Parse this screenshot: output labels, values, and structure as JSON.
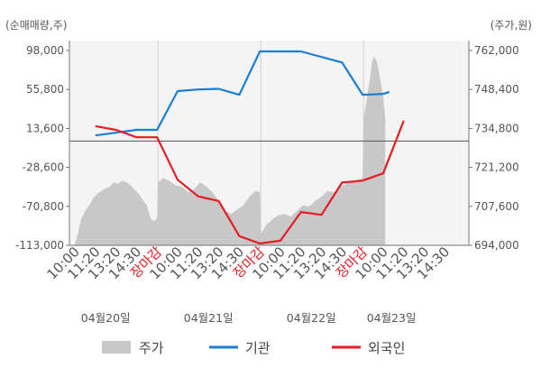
{
  "chart_data": {
    "type": "line",
    "left_axis_title": "(순매매량,주)",
    "right_axis_title": "(주가,원)",
    "left_ticks": [
      "98,000",
      "55,800",
      "13,600",
      "-28,600",
      "-70,800",
      "-113,000"
    ],
    "right_ticks": [
      "762,000",
      "748,400",
      "734,800",
      "721,200",
      "707,600",
      "694,000"
    ],
    "left_ylim": [
      -113000,
      98000
    ],
    "right_ylim": [
      694000,
      762000
    ],
    "x_tick_labels": [
      {
        "label": "10:00",
        "slot": 0,
        "market_close": false
      },
      {
        "label": "11:20",
        "slot": 1,
        "market_close": false
      },
      {
        "label": "13:20",
        "slot": 2,
        "market_close": false
      },
      {
        "label": "14:30",
        "slot": 3,
        "market_close": false
      },
      {
        "label": "장마감",
        "slot": 4,
        "market_close": true
      },
      {
        "label": "10:00",
        "slot": 5,
        "market_close": false
      },
      {
        "label": "11:20",
        "slot": 6,
        "market_close": false
      },
      {
        "label": "13:20",
        "slot": 7,
        "market_close": false
      },
      {
        "label": "14:30",
        "slot": 8,
        "market_close": false
      },
      {
        "label": "장마감",
        "slot": 9,
        "market_close": true
      },
      {
        "label": "10:00",
        "slot": 10,
        "market_close": false
      },
      {
        "label": "11:20",
        "slot": 11,
        "market_close": false
      },
      {
        "label": "13:20",
        "slot": 12,
        "market_close": false
      },
      {
        "label": "14:30",
        "slot": 13,
        "market_close": false
      },
      {
        "label": "장마감",
        "slot": 14,
        "market_close": true
      },
      {
        "label": "10:00",
        "slot": 15,
        "market_close": false
      },
      {
        "label": "11:20",
        "slot": 16,
        "market_close": false
      },
      {
        "label": "13:20",
        "slot": 17,
        "market_close": false
      },
      {
        "label": "14:30",
        "slot": 18,
        "market_close": false
      }
    ],
    "date_labels": [
      {
        "label": "04월20일",
        "slot": 1.5
      },
      {
        "label": "04월21일",
        "slot": 6.5
      },
      {
        "label": "04월22일",
        "slot": 11.5
      },
      {
        "label": "04월23일",
        "slot": 15.4
      }
    ],
    "zero_line": 0,
    "series": [
      {
        "name": "주가",
        "kind": "area",
        "axis": "right",
        "color": "#c8c8c8",
        "points": [
          [
            0,
            694500
          ],
          [
            0.15,
            698000
          ],
          [
            0.3,
            703000
          ],
          [
            0.5,
            706000
          ],
          [
            0.7,
            708000
          ],
          [
            0.9,
            710500
          ],
          [
            1.1,
            712000
          ],
          [
            1.3,
            713000
          ],
          [
            1.5,
            714000
          ],
          [
            1.7,
            714500
          ],
          [
            1.9,
            716000
          ],
          [
            2.1,
            715500
          ],
          [
            2.3,
            716500
          ],
          [
            2.5,
            716000
          ],
          [
            2.7,
            715000
          ],
          [
            2.9,
            713500
          ],
          [
            3.1,
            712000
          ],
          [
            3.3,
            710000
          ],
          [
            3.5,
            708000
          ],
          [
            3.7,
            703000
          ],
          [
            3.85,
            702500
          ],
          [
            4.0,
            703500
          ],
          [
            4.05,
            716000
          ],
          [
            4.3,
            717500
          ],
          [
            4.6,
            716500
          ],
          [
            4.9,
            715000
          ],
          [
            5.2,
            714500
          ],
          [
            5.5,
            712500
          ],
          [
            5.8,
            713500
          ],
          [
            6.1,
            716000
          ],
          [
            6.4,
            714500
          ],
          [
            6.7,
            712500
          ],
          [
            7.0,
            709500
          ],
          [
            7.3,
            706000
          ],
          [
            7.6,
            705000
          ],
          [
            7.9,
            706500
          ],
          [
            8.2,
            708000
          ],
          [
            8.5,
            711000
          ],
          [
            8.8,
            713000
          ],
          [
            9.0,
            712500
          ],
          [
            9.05,
            698000
          ],
          [
            9.3,
            701000
          ],
          [
            9.6,
            703000
          ],
          [
            9.9,
            704500
          ],
          [
            10.2,
            705000
          ],
          [
            10.5,
            704000
          ],
          [
            10.8,
            706000
          ],
          [
            11.1,
            708000
          ],
          [
            11.4,
            707500
          ],
          [
            11.7,
            709500
          ],
          [
            12.0,
            711000
          ],
          [
            12.3,
            713000
          ],
          [
            12.6,
            712500
          ],
          [
            12.9,
            714500
          ],
          [
            13.2,
            715500
          ],
          [
            13.5,
            716500
          ],
          [
            13.8,
            717000
          ],
          [
            14.0,
            717500
          ],
          [
            14.05,
            738000
          ],
          [
            14.2,
            745000
          ],
          [
            14.35,
            752000
          ],
          [
            14.45,
            758000
          ],
          [
            14.55,
            760000
          ],
          [
            14.7,
            758000
          ],
          [
            14.85,
            752000
          ],
          [
            15.0,
            746000
          ],
          [
            15.1,
            738000
          ]
        ]
      },
      {
        "name": "기관",
        "kind": "line",
        "axis": "left",
        "color": "#1a7fd4",
        "points": [
          [
            1,
            6000
          ],
          [
            3,
            12000
          ],
          [
            4,
            12000
          ],
          [
            5,
            54000
          ],
          [
            6,
            55800
          ],
          [
            7,
            56500
          ],
          [
            8,
            50000
          ],
          [
            9,
            97000
          ],
          [
            10,
            97000
          ],
          [
            11,
            97000
          ],
          [
            13,
            85000
          ],
          [
            14,
            50000
          ],
          [
            15,
            51000
          ],
          [
            15.3,
            53000
          ]
        ]
      },
      {
        "name": "외국인",
        "kind": "line",
        "axis": "left",
        "color": "#e51c23",
        "points": [
          [
            1,
            16000
          ],
          [
            2,
            12000
          ],
          [
            3,
            4000
          ],
          [
            4,
            4000
          ],
          [
            5,
            -42000
          ],
          [
            6,
            -60000
          ],
          [
            7,
            -65000
          ],
          [
            8,
            -103000
          ],
          [
            9,
            -111000
          ],
          [
            10,
            -108000
          ],
          [
            11,
            -77000
          ],
          [
            12,
            -80000
          ],
          [
            13,
            -45000
          ],
          [
            14,
            -43000
          ],
          [
            15,
            -35000
          ],
          [
            16,
            22000
          ]
        ]
      }
    ],
    "legend": [
      "주가",
      "기관",
      "외국인"
    ],
    "legend_position": "bottom"
  }
}
